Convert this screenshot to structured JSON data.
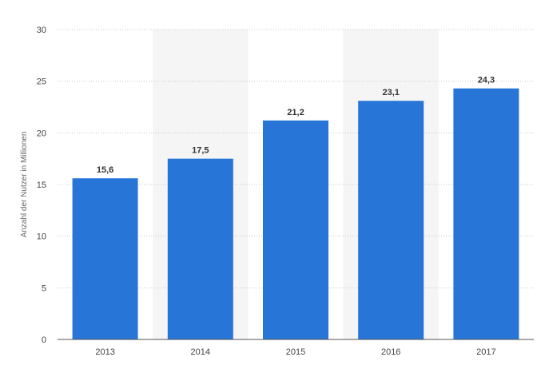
{
  "chart_data": {
    "type": "bar",
    "title": "",
    "xlabel": "",
    "ylabel": "Anzahl der Nutzer in Millionen",
    "categories": [
      "2013",
      "2014",
      "2015",
      "2016",
      "2017"
    ],
    "values": [
      15.6,
      17.5,
      21.2,
      23.1,
      24.3
    ],
    "value_labels": [
      "15,6",
      "17,5",
      "21,2",
      "23,1",
      "24,3"
    ],
    "ylim": [
      0,
      30
    ],
    "yticks": [
      0,
      5,
      10,
      15,
      20,
      25,
      30
    ],
    "ytick_labels": [
      "0",
      "5",
      "10",
      "15",
      "20",
      "25",
      "30"
    ],
    "grid": true,
    "bar_color": "#2875d8",
    "alt_band_color": "#f5f5f5"
  }
}
